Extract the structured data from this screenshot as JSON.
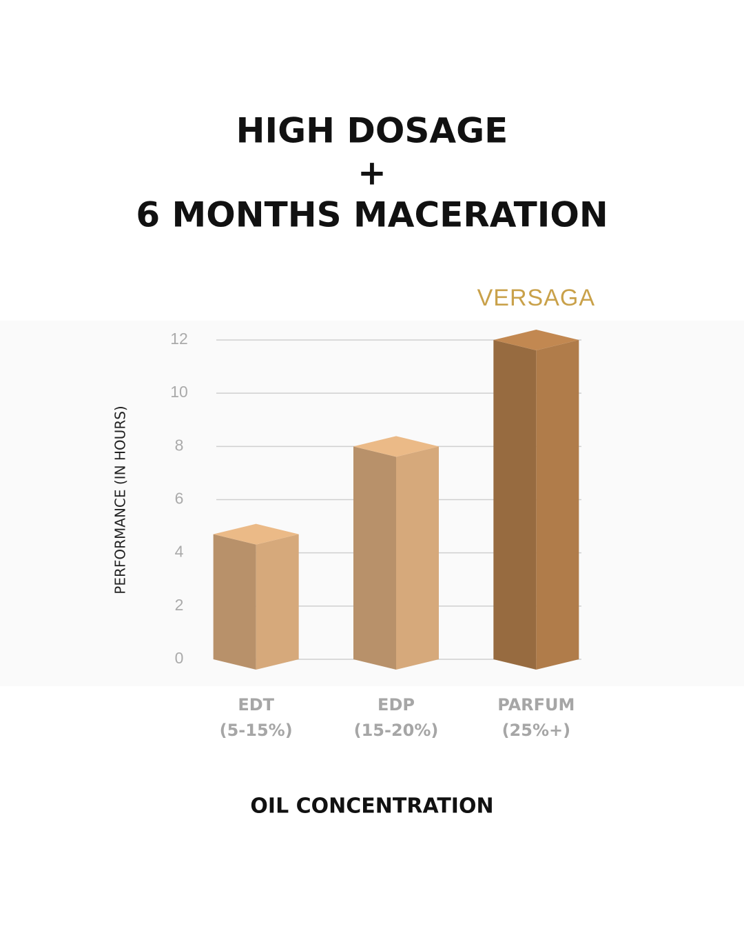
{
  "chart_data": {
    "type": "bar3d",
    "title": [
      "HIGH DOSAGE",
      "+",
      "6 MONTHS MACERATION"
    ],
    "y_label": "PERFORMANCE (IN HOURS)",
    "x_label": "OIL CONCENTRATION",
    "annotation": "VERSAGA",
    "annotation_color": "#c9a14a",
    "categories": [
      "EDT",
      "EDP",
      "PARFUM"
    ],
    "category_notes": [
      "(5-15%)",
      "(15-20%)",
      "(25%+)"
    ],
    "values": [
      4.7,
      8,
      12
    ],
    "colors": [
      "#d6a97b",
      "#d6a97b",
      "#b07c4a"
    ],
    "ylim": [
      0,
      12
    ],
    "yticks": [
      0,
      2,
      4,
      6,
      8,
      10,
      12
    ],
    "grid": true
  }
}
